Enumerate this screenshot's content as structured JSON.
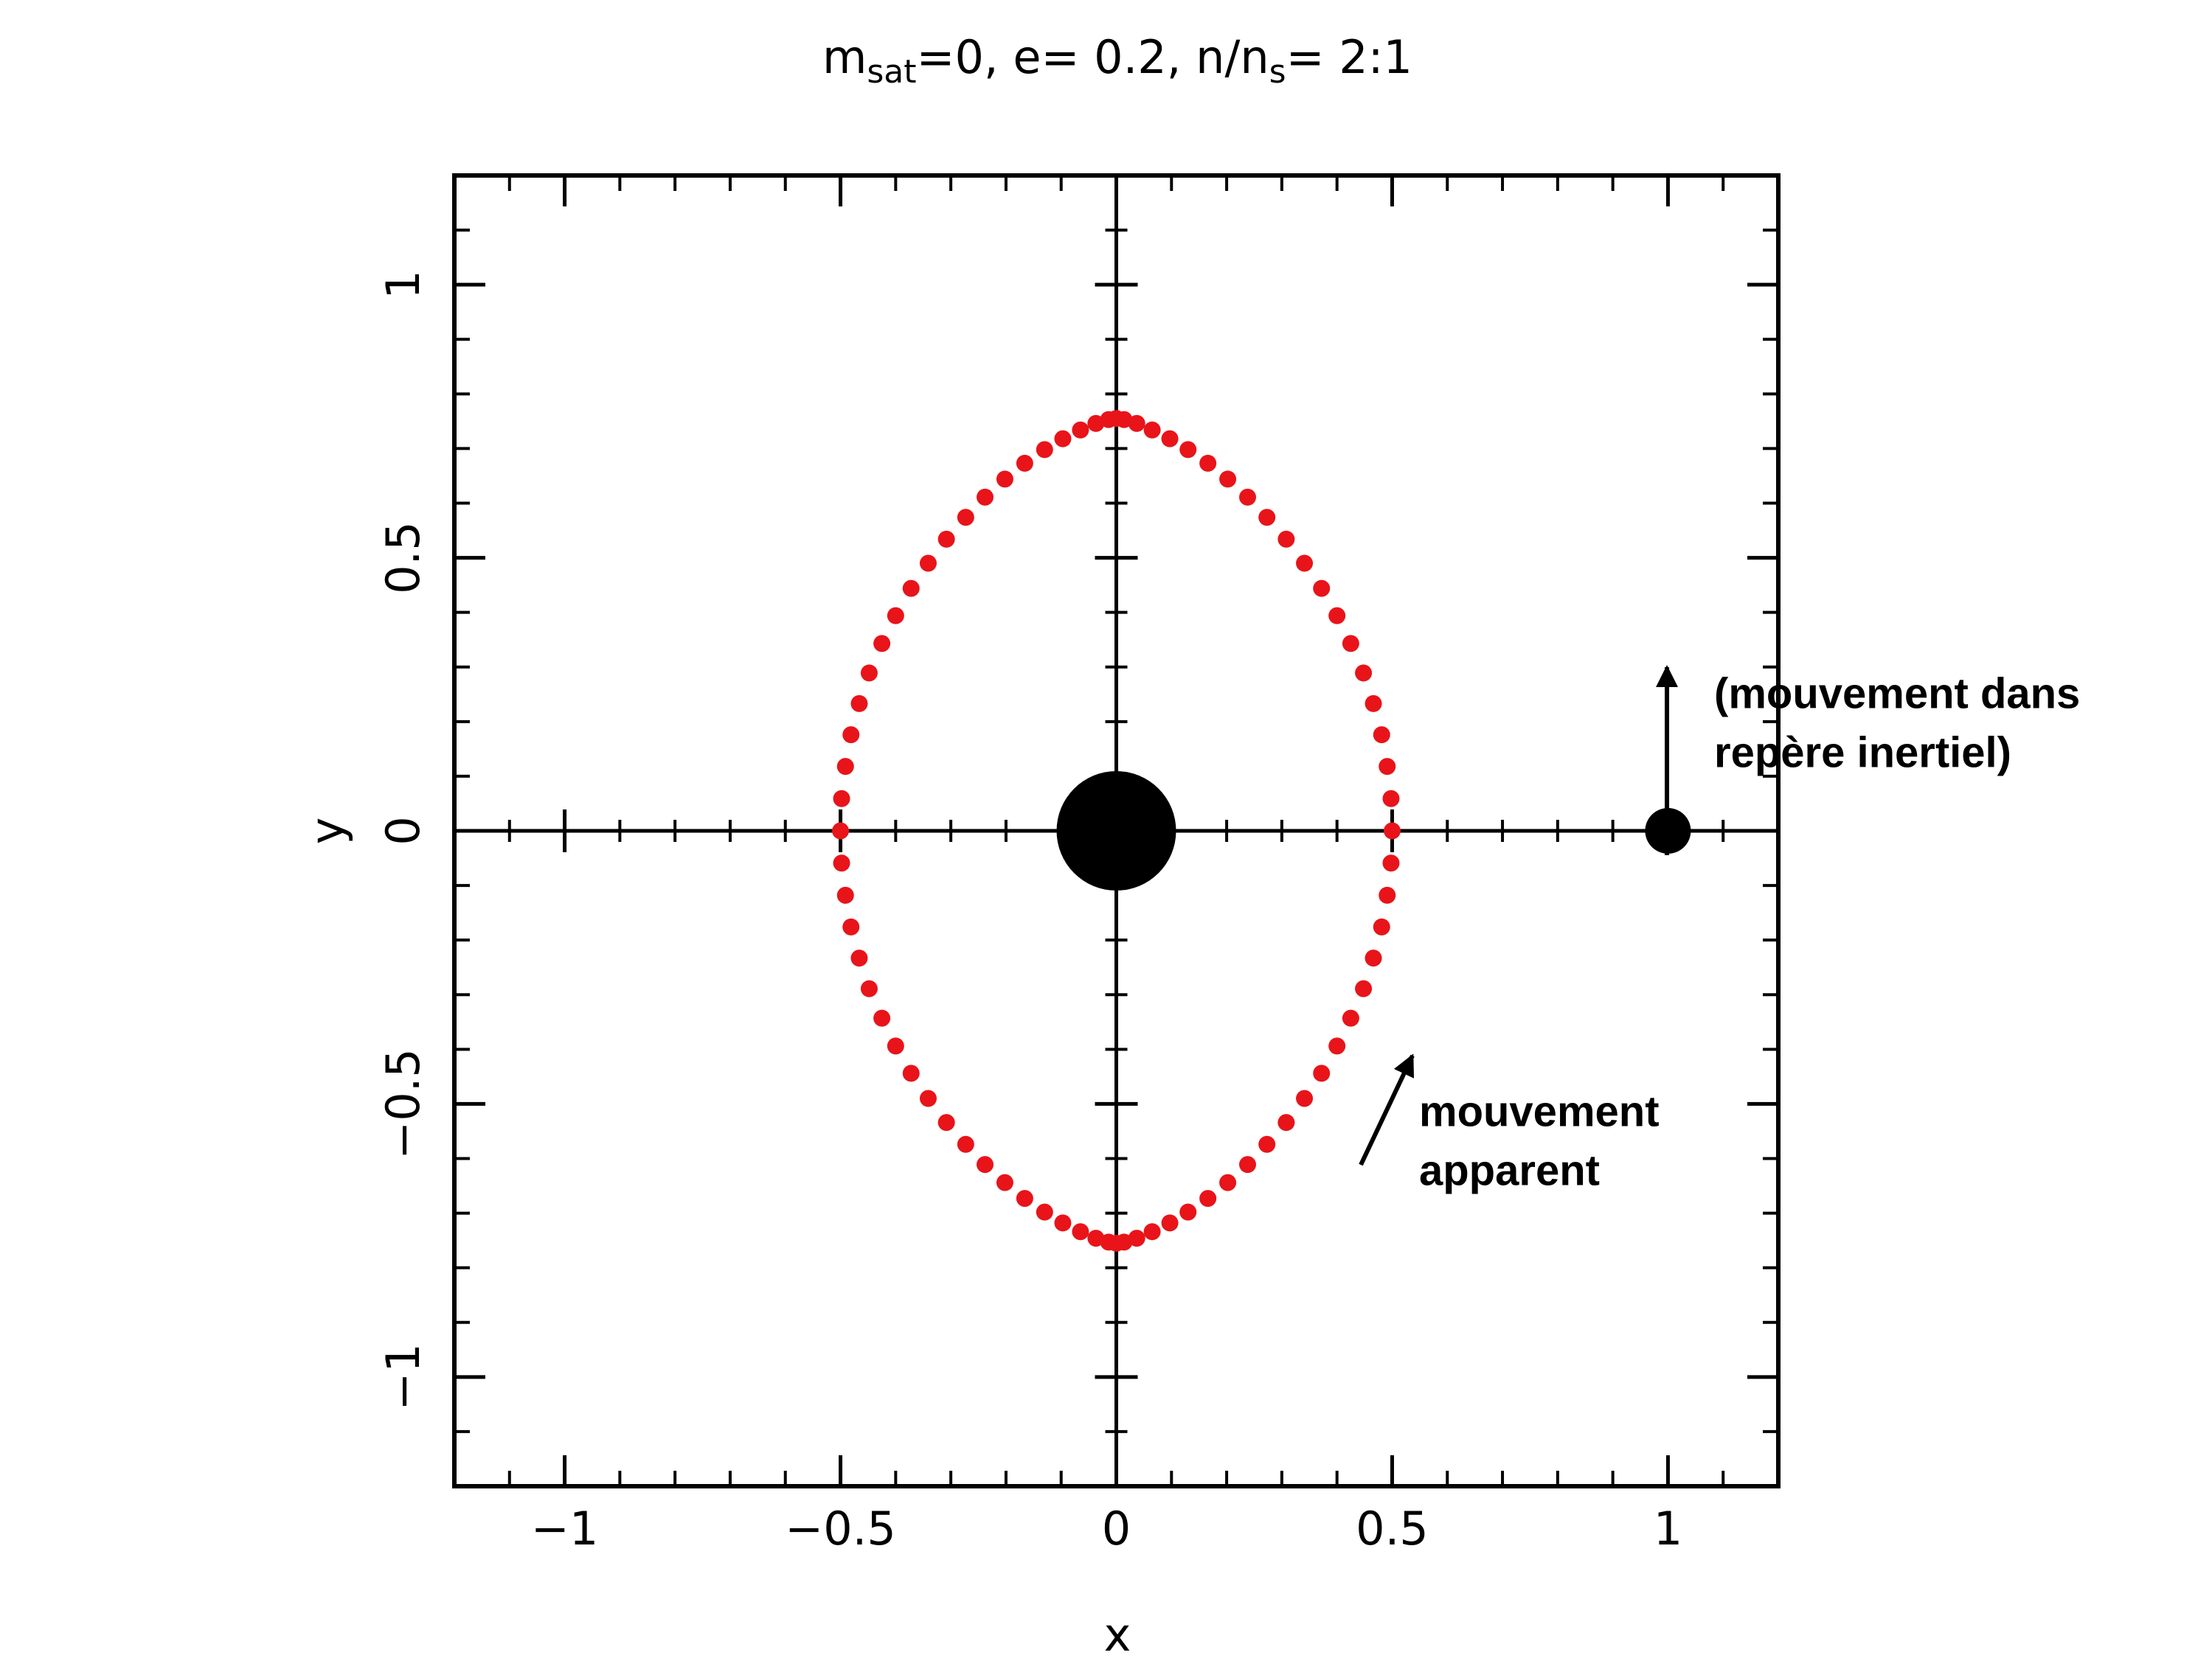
{
  "chart_data": {
    "type": "scatter",
    "title": [
      {
        "text": "m"
      },
      {
        "text": "sat",
        "sub": true
      },
      {
        "text": "=0, e= 0.2, n/n"
      },
      {
        "text": "s",
        "sub": true
      },
      {
        "text": "= 2:1"
      }
    ],
    "xlabel": "x",
    "ylabel": "y",
    "xlim": [
      -1.2,
      1.2
    ],
    "ylim": [
      -1.2,
      1.2
    ],
    "xticks": [
      {
        "value": -1,
        "label": "−1"
      },
      {
        "value": -0.5,
        "label": "−0.5"
      },
      0,
      0.5,
      1
    ],
    "yticks": [
      {
        "value": -1,
        "label": "−1"
      },
      {
        "value": -0.5,
        "label": "−0.5"
      },
      0,
      0.5,
      1
    ],
    "xminor": [
      -1.1,
      -0.9,
      -0.8,
      -0.7,
      -0.6,
      -0.4,
      -0.3,
      -0.2,
      -0.1,
      0.1,
      0.2,
      0.3,
      0.4,
      0.6,
      0.7,
      0.8,
      0.9,
      1.1
    ],
    "yminor": [
      -1.1,
      -0.9,
      -0.8,
      -0.7,
      -0.6,
      -0.4,
      -0.3,
      -0.2,
      -0.1,
      0.1,
      0.2,
      0.3,
      0.4,
      0.6,
      0.7,
      0.8,
      0.9,
      1.1
    ],
    "series": [
      {
        "color": "#e8141a",
        "marker": "small",
        "x": [
          0.5,
          0.498,
          0.491,
          0.481,
          0.466,
          0.448,
          0.425,
          0.4,
          0.372,
          0.341,
          0.308,
          0.273,
          0.238,
          0.202,
          0.166,
          0.13,
          0.097,
          0.065,
          0.037,
          0.014,
          0,
          -0.014,
          -0.037,
          -0.065,
          -0.097,
          -0.13,
          -0.166,
          -0.202,
          -0.238,
          -0.273,
          -0.308,
          -0.341,
          -0.372,
          -0.4,
          -0.425,
          -0.448,
          -0.466,
          -0.481,
          -0.491,
          -0.498,
          -0.5,
          -0.498,
          -0.491,
          -0.481,
          -0.466,
          -0.448,
          -0.425,
          -0.4,
          -0.372,
          -0.341,
          -0.308,
          -0.273,
          -0.238,
          -0.202,
          -0.166,
          -0.13,
          -0.097,
          -0.065,
          -0.037,
          -0.014,
          0,
          0.014,
          0.037,
          0.065,
          0.097,
          0.13,
          0.166,
          0.202,
          0.238,
          0.273,
          0.308,
          0.341,
          0.372,
          0.4,
          0.425,
          0.448,
          0.466,
          0.481,
          0.491,
          0.498
        ],
        "values": [
          0,
          0.059,
          0.118,
          0.176,
          0.233,
          0.289,
          0.343,
          0.394,
          0.444,
          0.49,
          0.534,
          0.574,
          0.611,
          0.644,
          0.673,
          0.698,
          0.718,
          0.734,
          0.746,
          0.753,
          0.755,
          0.753,
          0.746,
          0.734,
          0.718,
          0.698,
          0.673,
          0.644,
          0.611,
          0.574,
          0.534,
          0.49,
          0.444,
          0.394,
          0.343,
          0.289,
          0.233,
          0.176,
          0.118,
          0.059,
          0,
          -0.059,
          -0.118,
          -0.176,
          -0.233,
          -0.289,
          -0.343,
          -0.394,
          -0.444,
          -0.49,
          -0.534,
          -0.574,
          -0.611,
          -0.644,
          -0.673,
          -0.698,
          -0.718,
          -0.734,
          -0.746,
          -0.753,
          -0.755,
          -0.753,
          -0.746,
          -0.734,
          -0.718,
          -0.698,
          -0.673,
          -0.644,
          -0.611,
          -0.574,
          -0.534,
          -0.49,
          -0.444,
          -0.394,
          -0.343,
          -0.289,
          -0.233,
          -0.176,
          -0.118,
          -0.059
        ]
      },
      {
        "color": "#000000",
        "marker": "large",
        "x": [
          0
        ],
        "values": [
          0
        ]
      },
      {
        "color": "#000000",
        "marker": "medium",
        "x": [
          1
        ],
        "values": [
          0
        ]
      }
    ],
    "annotations": [
      [
        "(mouvement dans",
        "repère inertiel)"
      ],
      [
        "mouvement",
        "apparent"
      ]
    ]
  }
}
